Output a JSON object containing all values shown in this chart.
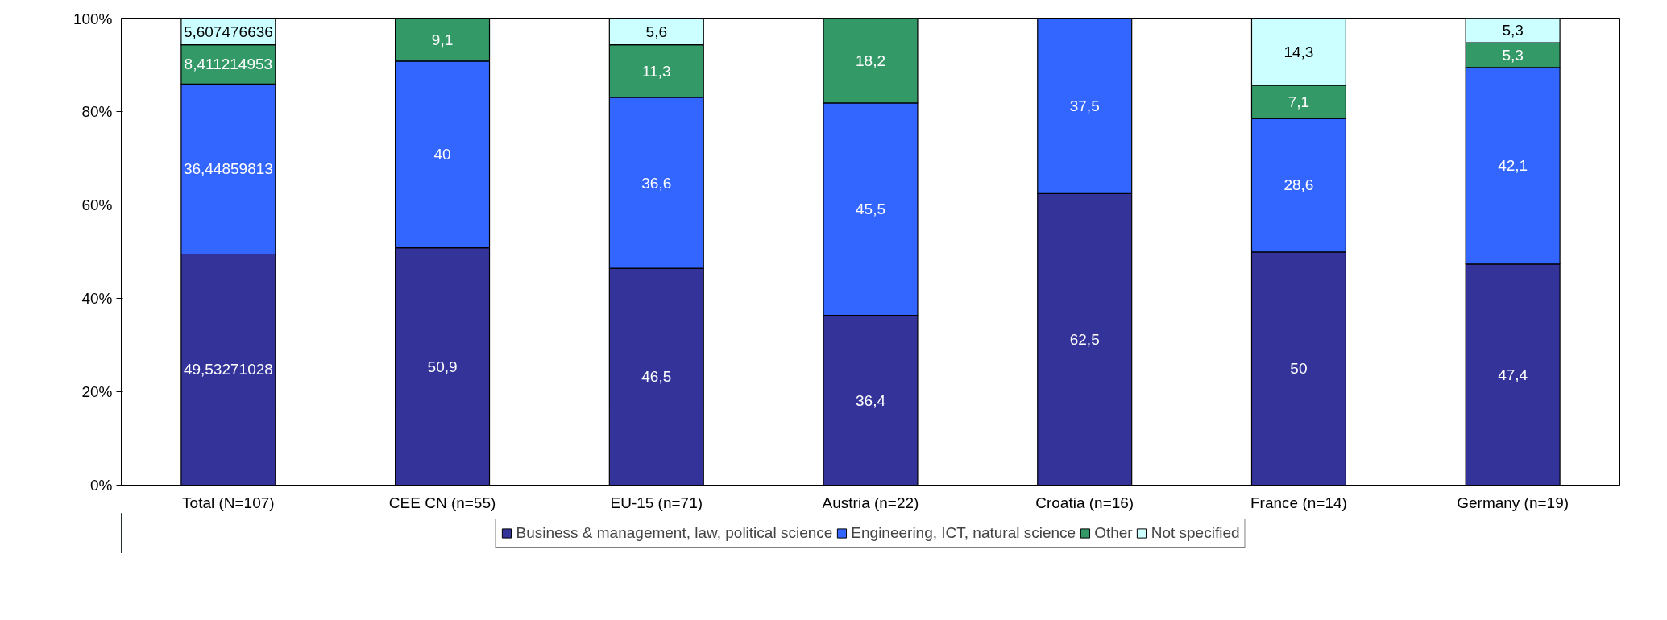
{
  "chart_data": {
    "type": "bar",
    "stacked": true,
    "categories": [
      "Total (N=107)",
      "CEE CN (n=55)",
      "EU-15 (n=71)",
      "Austria (n=22)",
      "Croatia (n=16)",
      "France (n=14)",
      "Germany (n=19)"
    ],
    "series": [
      {
        "name": "Business & management, law, political science",
        "color": "#333399",
        "values": [
          49.53271028,
          50.9,
          46.5,
          36.4,
          62.5,
          50,
          47.4
        ],
        "value_labels": [
          "49,53271028",
          "50,9",
          "46,5",
          "36,4",
          "62,5",
          "50",
          "47,4"
        ]
      },
      {
        "name": "Engineering, ICT, natural science",
        "color": "#3366ff",
        "values": [
          36.44859813,
          40,
          36.6,
          45.5,
          37.5,
          28.6,
          42.1
        ],
        "value_labels": [
          "36,44859813",
          "40",
          "36,6",
          "45,5",
          "37,5",
          "28,6",
          "42,1"
        ]
      },
      {
        "name": "Other",
        "color": "#339966",
        "values": [
          8.411214953,
          9.1,
          11.3,
          18.2,
          null,
          7.1,
          5.3
        ],
        "value_labels": [
          "8,411214953",
          "9,1",
          "11,3",
          "18,2",
          null,
          "7,1",
          "5,3"
        ]
      },
      {
        "name": "Not specified",
        "color": "#ccffff",
        "values": [
          5.607476636,
          null,
          5.6,
          null,
          null,
          14.3,
          5.3
        ],
        "value_labels": [
          "5,607476636",
          null,
          "5,6",
          null,
          null,
          "14,3",
          "5,3"
        ]
      }
    ],
    "ylim": [
      0,
      100.1
    ],
    "yticks": [
      {
        "value": 0,
        "label": "0%"
      },
      {
        "value": 20,
        "label": "20%"
      },
      {
        "value": 40,
        "label": "40%"
      },
      {
        "value": 60,
        "label": "60%"
      },
      {
        "value": 80,
        "label": "80%"
      },
      {
        "value": 100,
        "label": "100%"
      }
    ],
    "grid": false,
    "legend": "bottom"
  }
}
